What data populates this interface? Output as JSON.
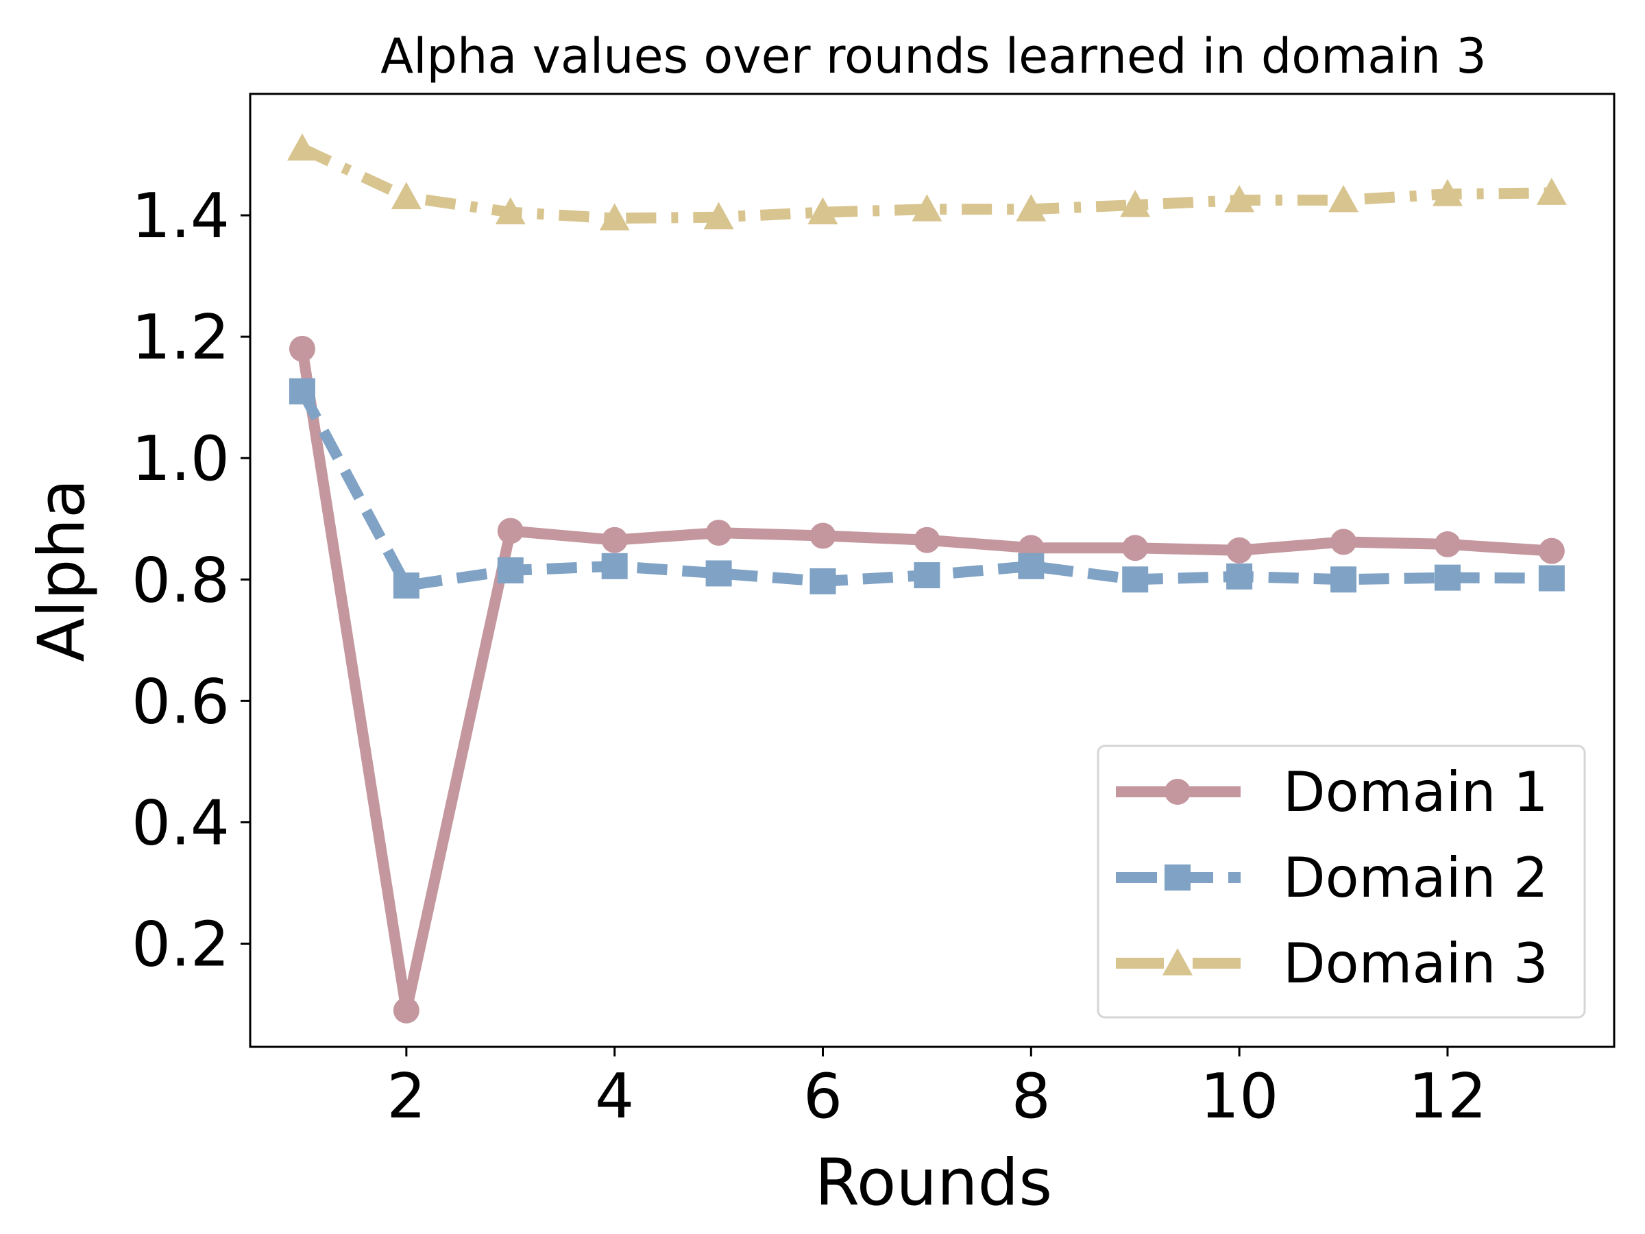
{
  "chart_data": {
    "type": "line",
    "title": "Alpha values over rounds learned in domain 3",
    "xlabel": "Rounds",
    "ylabel": "Alpha",
    "xlim": [
      0.5,
      13.6
    ],
    "ylim": [
      0.03,
      1.6
    ],
    "xticks": [
      2,
      4,
      6,
      8,
      10,
      12
    ],
    "yticks": [
      0.2,
      0.4,
      0.6,
      0.8,
      1.0,
      1.2,
      1.4
    ],
    "xtick_labels": [
      "2",
      "4",
      "6",
      "8",
      "10",
      "12"
    ],
    "ytick_labels": [
      "0.2",
      "0.4",
      "0.6",
      "0.8",
      "1.0",
      "1.2",
      "1.4"
    ],
    "grid": false,
    "legend_position": "lower-right",
    "x": [
      1,
      2,
      3,
      4,
      5,
      6,
      7,
      8,
      9,
      10,
      11,
      12,
      13
    ],
    "series": [
      {
        "name": "Domain 1",
        "color": "#c4979e",
        "line_style": "solid",
        "marker": "circle",
        "values": [
          1.18,
          0.09,
          0.88,
          0.865,
          0.877,
          0.872,
          0.865,
          0.852,
          0.852,
          0.848,
          0.862,
          0.858,
          0.847
        ]
      },
      {
        "name": "Domain 2",
        "color": "#7fa2c5",
        "line_style": "dashed",
        "marker": "square",
        "values": [
          1.11,
          0.79,
          0.815,
          0.822,
          0.81,
          0.797,
          0.807,
          0.822,
          0.8,
          0.805,
          0.8,
          0.803,
          0.802
        ]
      },
      {
        "name": "Domain 3",
        "color": "#d8c48f",
        "line_style": "dashdot",
        "marker": "triangle",
        "values": [
          1.51,
          1.43,
          1.405,
          1.395,
          1.397,
          1.405,
          1.41,
          1.41,
          1.417,
          1.425,
          1.425,
          1.435,
          1.437
        ]
      }
    ]
  }
}
